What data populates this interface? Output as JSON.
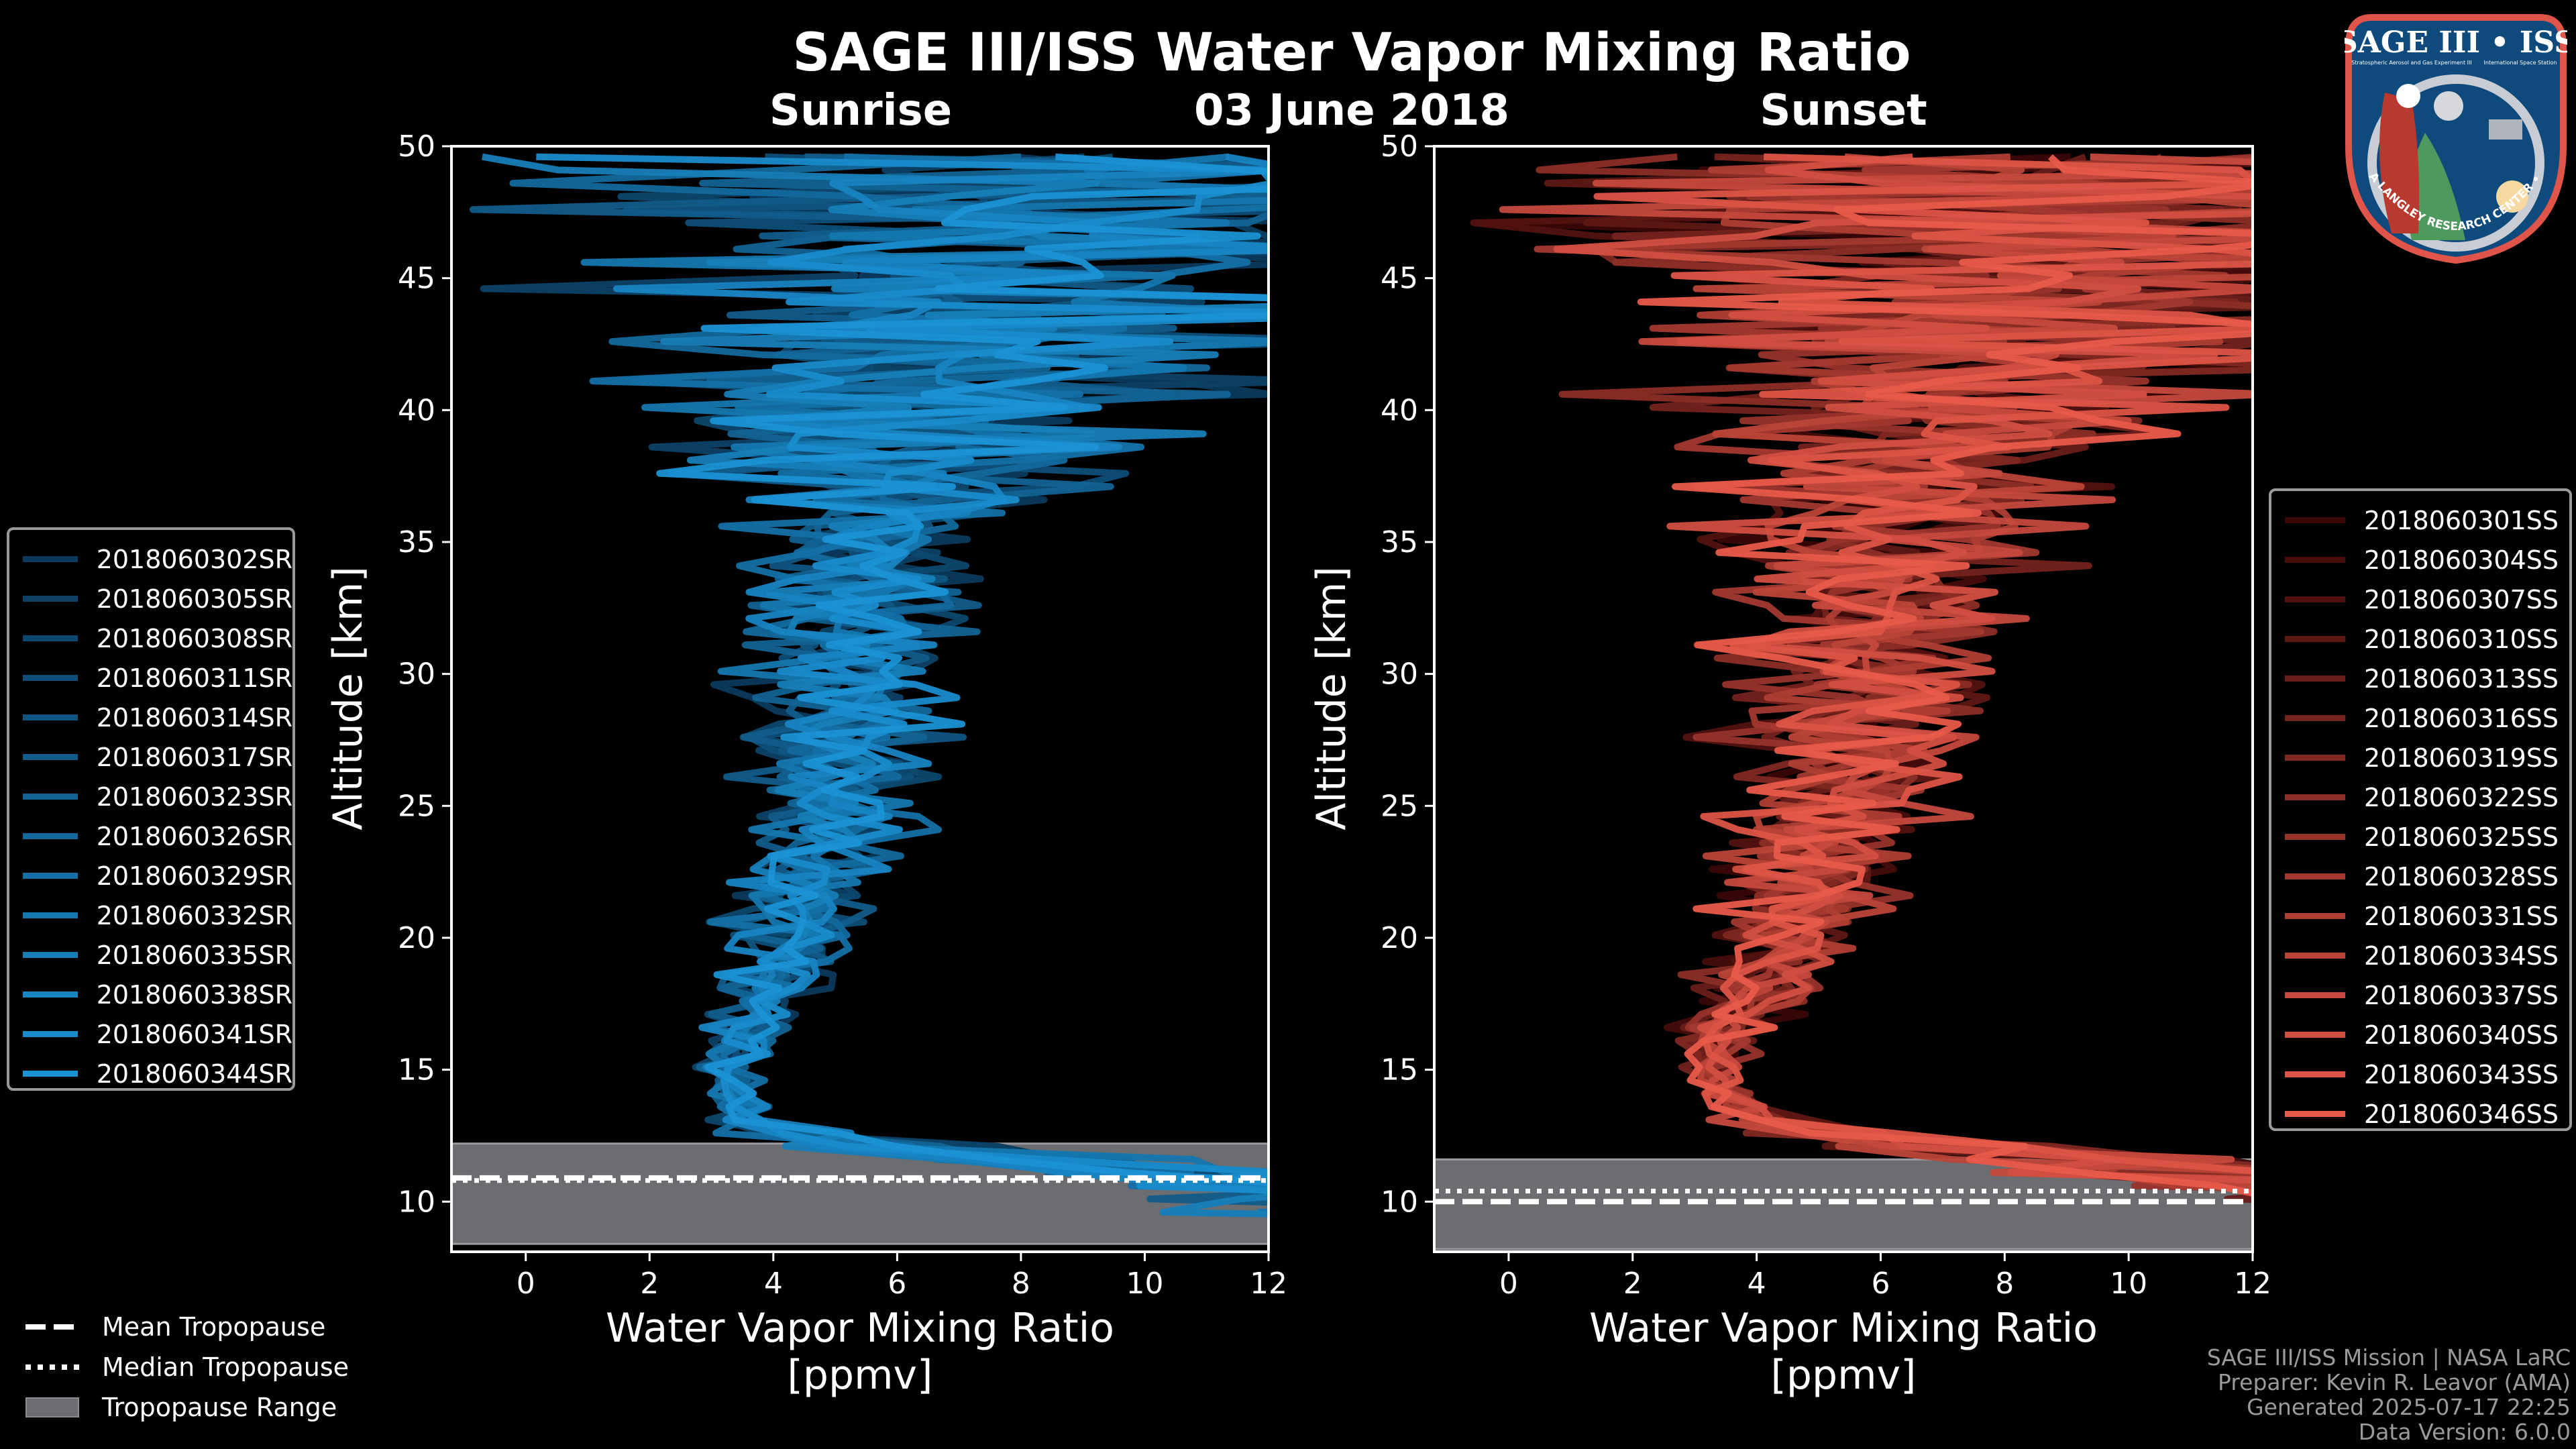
{
  "title": "SAGE III/ISS Water Vapor Mixing Ratio",
  "date": "03 June 2018",
  "logo": {
    "title": "SAGE III • ISS",
    "subtitle_left": "Stratospheric Aerosol and Gas Experiment III",
    "subtitle_right": "International Space Station",
    "ring_text": "BALL • NASA LANGLEY RESEARCH CENTER • TAS-I • ESA",
    "colors": {
      "border": "#e0554a",
      "field": "#0f4a7c",
      "ring": "#c8ccd4"
    }
  },
  "trop_legend": [
    {
      "label": "Mean Tropopause",
      "style": "dashed"
    },
    {
      "label": "Median Tropopause",
      "style": "dotted"
    },
    {
      "label": "Tropopause Range",
      "style": "fill"
    }
  ],
  "footer": [
    "SAGE III/ISS Mission | NASA LaRC",
    "Preparer: Kevin R. Leavor (AMA)",
    "Generated 2025-07-17 22:25",
    "Data Version: 6.0.0"
  ],
  "chart_data": [
    {
      "type": "line",
      "title": "Sunrise",
      "xlabel": "Water Vapor Mixing Ratio\n[ppmv]",
      "xlabel_lines": [
        "Water Vapor Mixing Ratio",
        "[ppmv]"
      ],
      "ylabel": "Altitude [km]",
      "xlim": [
        -1.2,
        12
      ],
      "ylim": [
        8.1,
        50
      ],
      "xticks": [
        0,
        2,
        4,
        6,
        8,
        10,
        12
      ],
      "yticks": [
        10,
        15,
        20,
        25,
        30,
        35,
        40,
        45,
        50
      ],
      "legend_position": "left-outside",
      "color_start": "#0b3a5c",
      "color_end": "#1a92d4",
      "altitude_grid": [
        8,
        10,
        11,
        12,
        13,
        14,
        15,
        16,
        18,
        20,
        22,
        25,
        28,
        30,
        32,
        35,
        38,
        40,
        42,
        45,
        48,
        50
      ],
      "mean_profile": [
        14,
        12,
        9,
        5.5,
        3.6,
        3.3,
        3.3,
        3.5,
        3.9,
        4.3,
        4.6,
        4.9,
        5.1,
        5.2,
        5.3,
        5.6,
        6.0,
        6.5,
        7.0,
        7.5,
        8.0,
        8.0
      ],
      "spread_profile": [
        2,
        2,
        2,
        1.2,
        0.4,
        0.3,
        0.35,
        0.4,
        0.6,
        0.8,
        0.9,
        1.0,
        1.2,
        1.3,
        1.4,
        1.5,
        2.5,
        3.5,
        4.2,
        5.0,
        5.5,
        6.0
      ],
      "tropopause": {
        "mean": 10.9,
        "median": 10.8,
        "range": [
          8.4,
          12.2
        ]
      },
      "series": [
        "2018060302SR",
        "2018060305SR",
        "2018060308SR",
        "2018060311SR",
        "2018060314SR",
        "2018060317SR",
        "2018060323SR",
        "2018060326SR",
        "2018060329SR",
        "2018060332SR",
        "2018060335SR",
        "2018060338SR",
        "2018060341SR",
        "2018060344SR"
      ]
    },
    {
      "type": "line",
      "title": "Sunset",
      "xlabel": "Water Vapor Mixing Ratio\n[ppmv]",
      "xlabel_lines": [
        "Water Vapor Mixing Ratio",
        "[ppmv]"
      ],
      "ylabel": "Altitude [km]",
      "xlim": [
        -1.2,
        12
      ],
      "ylim": [
        8.1,
        50
      ],
      "xticks": [
        0,
        2,
        4,
        6,
        8,
        10,
        12
      ],
      "yticks": [
        10,
        15,
        20,
        25,
        30,
        35,
        40,
        45,
        50
      ],
      "legend_position": "right-outside",
      "color_start": "#3a0707",
      "color_end": "#e85a4a",
      "altitude_grid": [
        8,
        10,
        11,
        12,
        13,
        14,
        15,
        16,
        18,
        20,
        22,
        25,
        28,
        30,
        32,
        35,
        38,
        40,
        42,
        45,
        48,
        50
      ],
      "mean_profile": [
        16,
        13,
        10,
        6.5,
        4.2,
        3.4,
        3.2,
        3.4,
        4.0,
        4.5,
        4.9,
        5.3,
        5.6,
        5.7,
        5.9,
        6.2,
        6.6,
        7.0,
        7.3,
        8.0,
        8.5,
        8.5
      ],
      "spread_profile": [
        2,
        2,
        2,
        1.5,
        0.6,
        0.4,
        0.4,
        0.5,
        0.8,
        1.0,
        1.1,
        1.3,
        1.5,
        1.6,
        1.8,
        2.0,
        2.6,
        3.4,
        4.0,
        5.0,
        5.5,
        6.0
      ],
      "tropopause": {
        "mean": 10.0,
        "median": 10.4,
        "range": [
          8.2,
          11.6
        ]
      },
      "series": [
        "2018060301SS",
        "2018060304SS",
        "2018060307SS",
        "2018060310SS",
        "2018060313SS",
        "2018060316SS",
        "2018060319SS",
        "2018060322SS",
        "2018060325SS",
        "2018060328SS",
        "2018060331SS",
        "2018060334SS",
        "2018060337SS",
        "2018060340SS",
        "2018060343SS",
        "2018060346SS"
      ]
    }
  ]
}
